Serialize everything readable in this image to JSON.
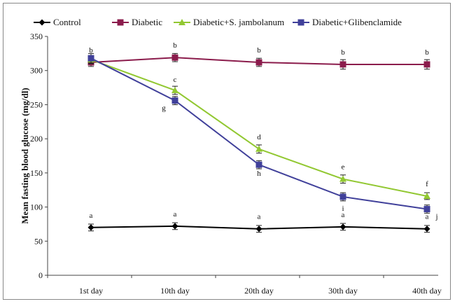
{
  "chart_data": {
    "type": "line",
    "title": "",
    "xlabel": "",
    "ylabel": "Mean fasting blood  glucose (mg/dl)",
    "categories": [
      "1st day",
      "10th day",
      "20th day",
      "30th day",
      "40th day"
    ],
    "ylim": [
      0,
      350
    ],
    "yticks": [
      0,
      50,
      100,
      150,
      200,
      250,
      300,
      350
    ],
    "grid": false,
    "legend_position": "top",
    "series": [
      {
        "name": "Control",
        "color": "#000000",
        "marker": "diamond",
        "values": [
          70,
          72,
          68,
          71,
          68
        ],
        "errors": [
          5,
          5,
          5,
          5,
          5
        ],
        "annotations": [
          "a",
          "a",
          "a",
          "a",
          "a"
        ]
      },
      {
        "name": "Diabetic",
        "color": "#8b1c4c",
        "marker": "square",
        "values": [
          312,
          319,
          312,
          309,
          309
        ],
        "errors": [
          6,
          6,
          6,
          7,
          7
        ],
        "annotations": [
          "b",
          "b",
          "b",
          "b",
          "b"
        ]
      },
      {
        "name": "Diabetic+S. jambolanum",
        "color": "#92c832",
        "marker": "triangle",
        "values": [
          316,
          271,
          185,
          141,
          116
        ],
        "errors": [
          6,
          6,
          6,
          6,
          5
        ],
        "annotations": [
          "",
          "c",
          "d",
          "e",
          "f"
        ]
      },
      {
        "name": "Diabetic+Glibenclamide",
        "color": "#40409a",
        "marker": "square",
        "values": [
          318,
          256,
          162,
          115,
          97
        ],
        "errors": [
          7,
          6,
          6,
          6,
          6
        ],
        "annotations": [
          "",
          "g",
          "h",
          "i",
          "j"
        ]
      }
    ]
  }
}
